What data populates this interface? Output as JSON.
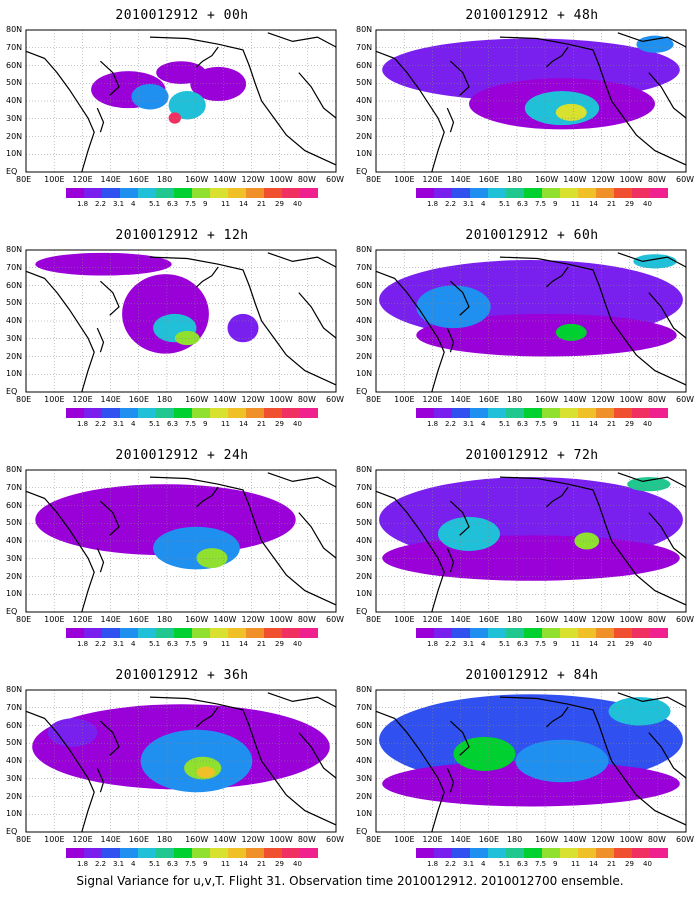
{
  "panels": [
    {
      "title": "2010012912 + 00h"
    },
    {
      "title": "2010012912 + 48h"
    },
    {
      "title": "2010012912 + 12h"
    },
    {
      "title": "2010012912 + 60h"
    },
    {
      "title": "2010012912 + 24h"
    },
    {
      "title": "2010012912 + 72h"
    },
    {
      "title": "2010012912 + 36h"
    },
    {
      "title": "2010012912 + 84h"
    }
  ],
  "lat_labels": [
    "80N",
    "70N",
    "60N",
    "50N",
    "40N",
    "30N",
    "20N",
    "10N",
    "EQ"
  ],
  "lon_labels": [
    "80E",
    "100E",
    "120E",
    "140E",
    "160E",
    "180",
    "160W",
    "140W",
    "120W",
    "100W",
    "80W",
    "60W"
  ],
  "colorbar": {
    "labels": [
      "1.8",
      "2.2",
      "3.1",
      "4",
      "5.1",
      "6.3",
      "7.5",
      "9",
      "11",
      "14",
      "21",
      "29",
      "40"
    ],
    "colors": [
      "#9a00d8",
      "#7a20ee",
      "#3050f0",
      "#2090f0",
      "#20c0d8",
      "#20c890",
      "#00d030",
      "#90e030",
      "#d8e030",
      "#f0c028",
      "#f09028",
      "#f05030",
      "#f03060",
      "#f0208f"
    ]
  },
  "caption": "Signal Variance for u,v,T. Flight 31. Observation time 2010012912. 2010012700 ensemble."
}
